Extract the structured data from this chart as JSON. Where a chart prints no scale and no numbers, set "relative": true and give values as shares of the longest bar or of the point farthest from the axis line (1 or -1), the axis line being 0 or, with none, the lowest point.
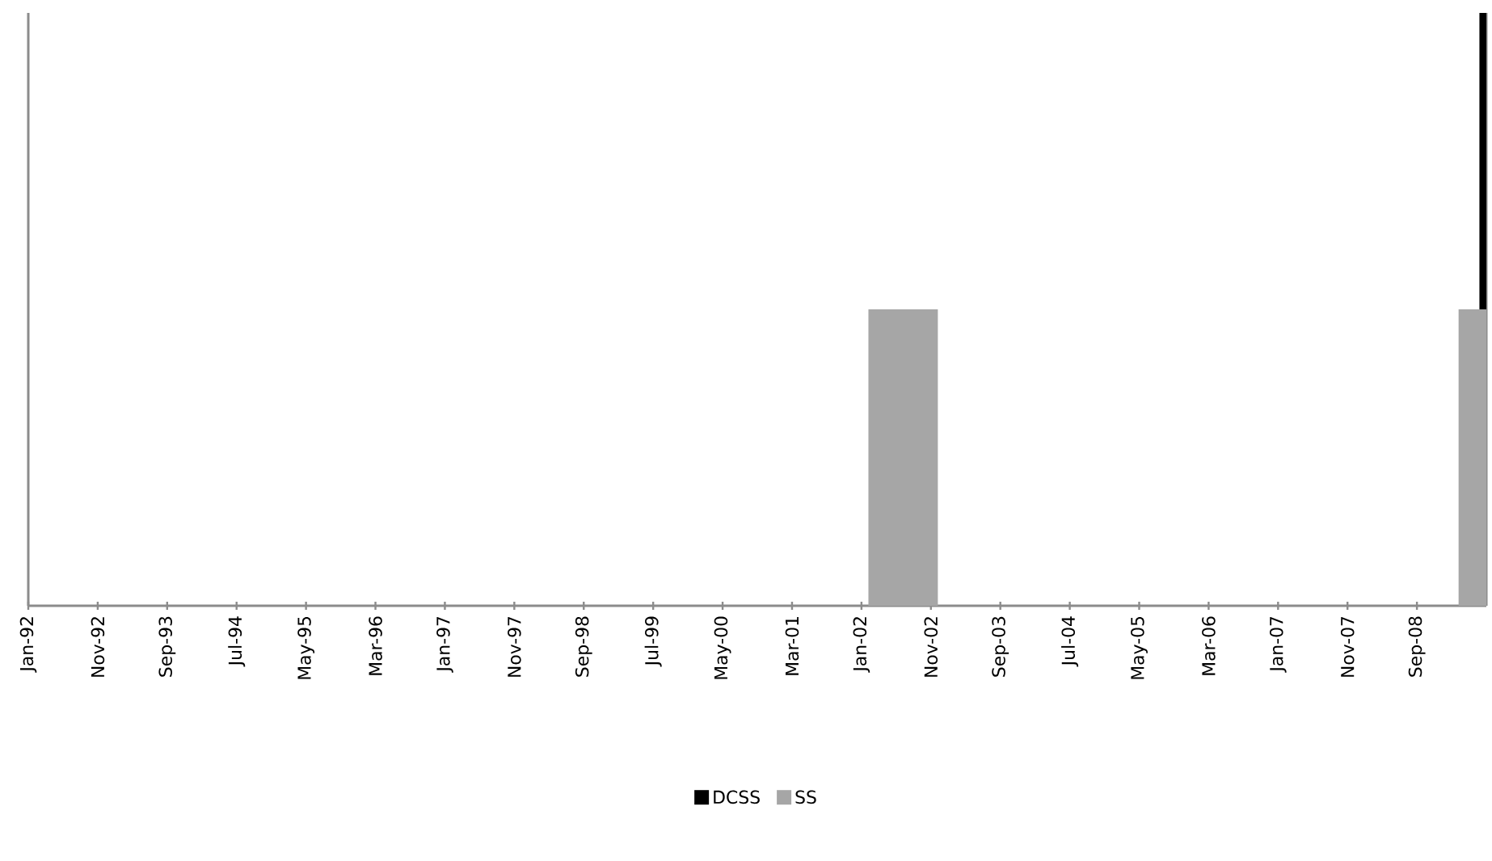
{
  "chart_data": {
    "type": "area",
    "stacked": true,
    "relative": true,
    "x": [
      "1992-01",
      "2002-02",
      "2002-02",
      "2002-12",
      "2002-12",
      "2009-03",
      "2009-03",
      "2009-06",
      "2009-06",
      "2009-07"
    ],
    "series": [
      {
        "name": "DCSS",
        "color": "#000000",
        "values": [
          0,
          0,
          0,
          0,
          0,
          0,
          0,
          0,
          0.5,
          0.5
        ]
      },
      {
        "name": "SS",
        "color": "#a6a6a6",
        "values": [
          0,
          0,
          0.5,
          0.5,
          0,
          0,
          0.5,
          0.5,
          0.5,
          0.5
        ]
      }
    ],
    "xlim": [
      "1992-01",
      "2009-07"
    ],
    "xticks": [
      {
        "value": "1992-01",
        "label": "Jan-92"
      },
      {
        "value": "1992-11",
        "label": "Nov-92"
      },
      {
        "value": "1993-09",
        "label": "Sep-93"
      },
      {
        "value": "1994-07",
        "label": "Jul-94"
      },
      {
        "value": "1995-05",
        "label": "May-95"
      },
      {
        "value": "1996-03",
        "label": "Mar-96"
      },
      {
        "value": "1997-01",
        "label": "Jan-97"
      },
      {
        "value": "1997-11",
        "label": "Nov-97"
      },
      {
        "value": "1998-09",
        "label": "Sep-98"
      },
      {
        "value": "1999-07",
        "label": "Jul-99"
      },
      {
        "value": "2000-05",
        "label": "May-00"
      },
      {
        "value": "2001-03",
        "label": "Mar-01"
      },
      {
        "value": "2002-01",
        "label": "Jan-02"
      },
      {
        "value": "2002-11",
        "label": "Nov-02"
      },
      {
        "value": "2003-09",
        "label": "Sep-03"
      },
      {
        "value": "2004-07",
        "label": "Jul-04"
      },
      {
        "value": "2005-05",
        "label": "May-05"
      },
      {
        "value": "2006-03",
        "label": "Mar-06"
      },
      {
        "value": "2007-01",
        "label": "Jan-07"
      },
      {
        "value": "2007-11",
        "label": "Nov-07"
      },
      {
        "value": "2008-09",
        "label": "Sep-08"
      }
    ],
    "legend": "bottom",
    "grid": false
  }
}
